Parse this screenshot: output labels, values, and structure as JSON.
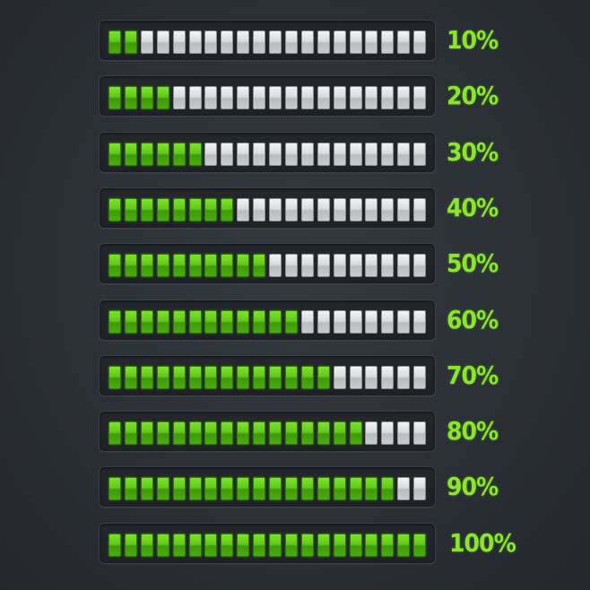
{
  "segments_per_bar": 20,
  "colors": {
    "on": "#6fd11f",
    "off": "#d4d6d8",
    "label": "#8be52a",
    "background": "#2e3338"
  },
  "bars": [
    {
      "label": "10%",
      "value": 0.1
    },
    {
      "label": "20%",
      "value": 0.2
    },
    {
      "label": "30%",
      "value": 0.3
    },
    {
      "label": "40%",
      "value": 0.4
    },
    {
      "label": "50%",
      "value": 0.5
    },
    {
      "label": "60%",
      "value": 0.6
    },
    {
      "label": "70%",
      "value": 0.7
    },
    {
      "label": "80%",
      "value": 0.8
    },
    {
      "label": "90%",
      "value": 0.9
    },
    {
      "label": "100%",
      "value": 1.0
    }
  ]
}
